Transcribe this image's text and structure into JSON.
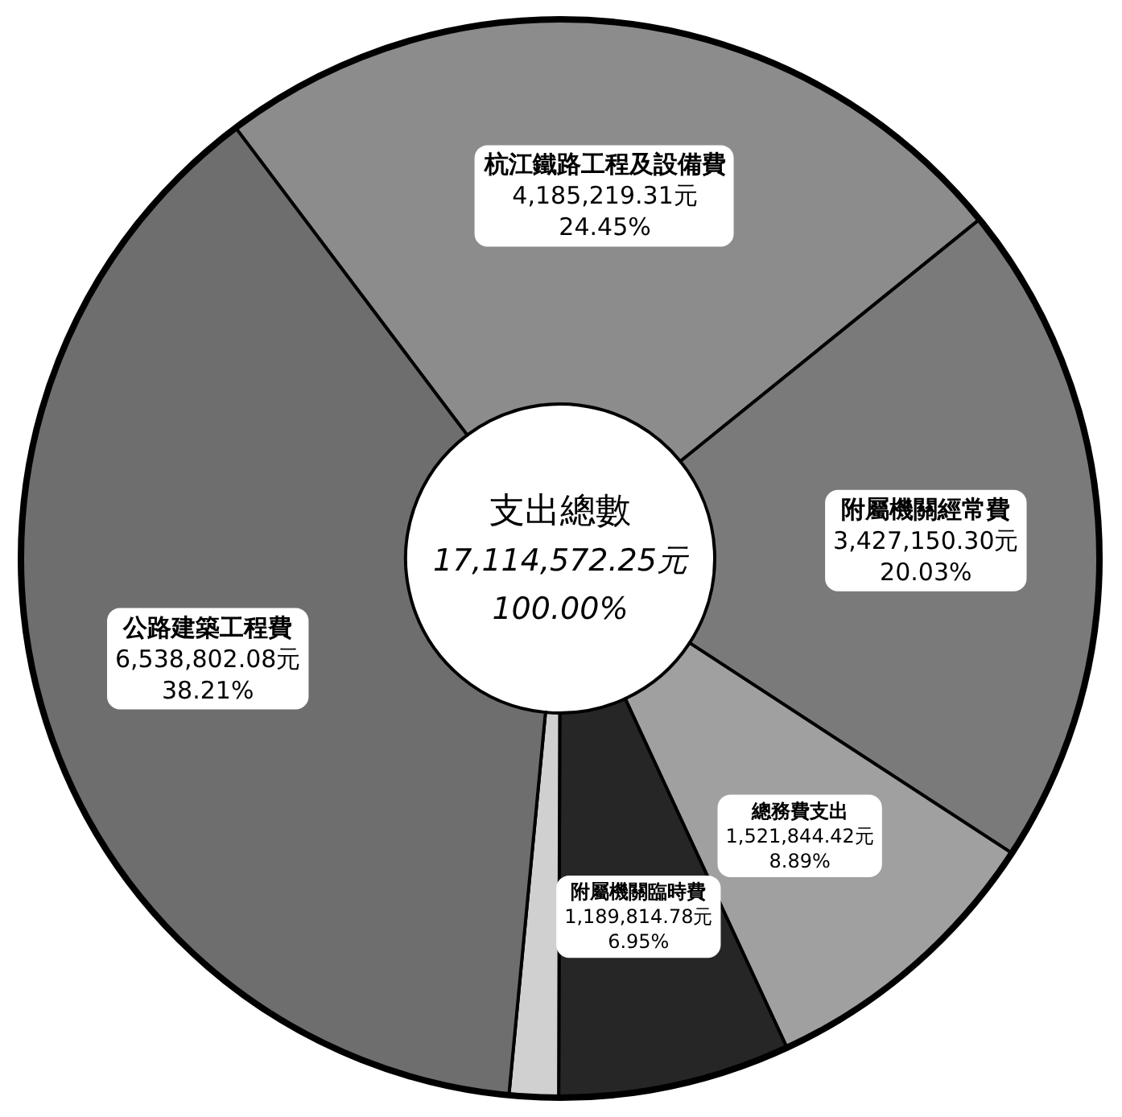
{
  "chart_data": {
    "type": "donut",
    "title": "支出總數",
    "annotations": [
      "17,114,572.25元",
      "100.00%"
    ],
    "categories": [
      "杭江鐵路工程及設備費",
      "附屬機關經常費",
      "總務費支出",
      "附屬機關臨時費",
      null,
      "公路建築工程費"
    ],
    "values": [
      4185219.31,
      3427150.3,
      1521844.42,
      1189814.78,
      251741.36,
      6538802.08
    ],
    "value_labels": [
      "4,185,219.31元\n24.45%",
      "3,427,150.30元\n20.03%",
      "1,521,844.42元\n8.89%",
      "1,189,814.78元\n6.95%",
      null,
      "6,538,802.08元\n38.21%"
    ],
    "colors": [
      "#8c8c8c",
      "#7a7a7a",
      "#a0a0a0",
      "#262626",
      "#d0d0d0",
      "#6e6e6e"
    ]
  }
}
